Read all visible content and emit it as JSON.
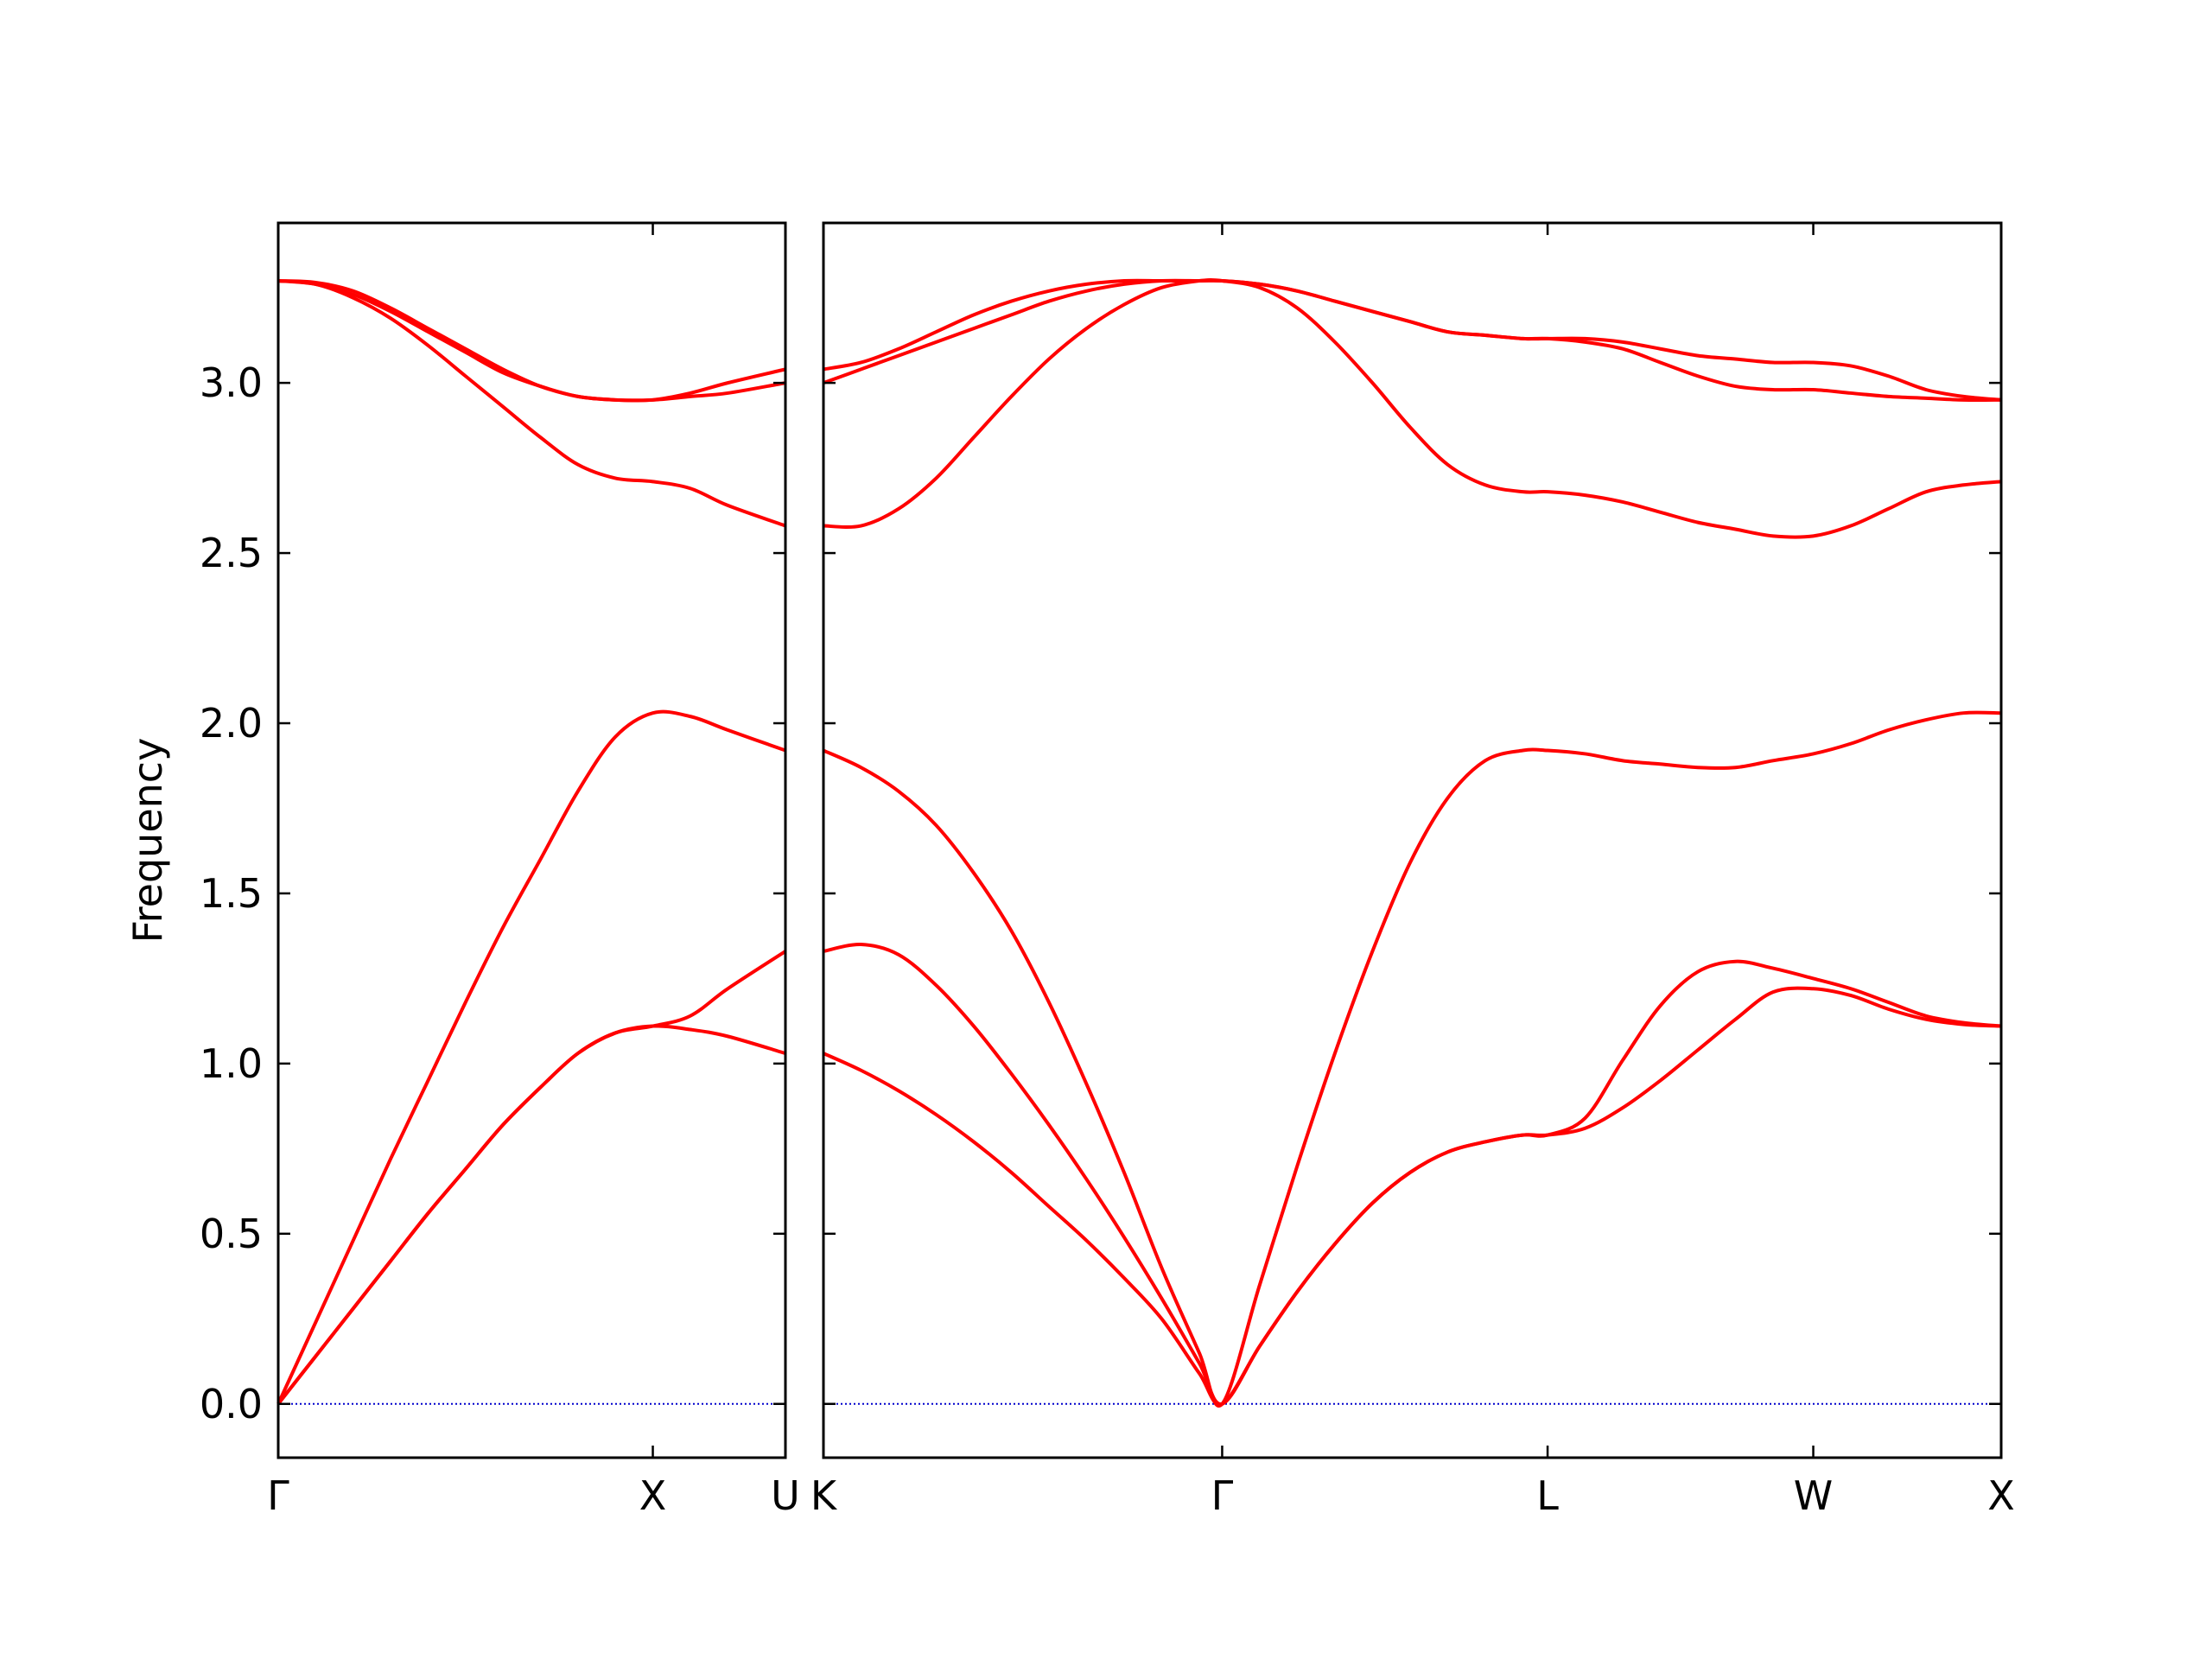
{
  "chart_data": [
    {
      "type": "line",
      "ylabel": "Frequency",
      "x": [
        0,
        0.1,
        0.2,
        0.3,
        0.4,
        0.5,
        0.6,
        0.7,
        0.8,
        0.9,
        1.0,
        1.1,
        1.2,
        1.354
      ],
      "xlim": [
        0,
        1.354
      ],
      "xticks": [
        {
          "value": 0,
          "label": "Γ"
        },
        {
          "value": 1.0,
          "label": "X"
        },
        {
          "value": 1.354,
          "label": "U"
        }
      ],
      "ylim": [
        -0.158,
        3.47
      ],
      "yticks": [
        {
          "value": 0,
          "label": "0.0"
        },
        {
          "value": 0.5,
          "label": "0.5"
        },
        {
          "value": 1,
          "label": "1.0"
        },
        {
          "value": 1.5,
          "label": "1.5"
        },
        {
          "value": 2,
          "label": "2.0"
        },
        {
          "value": 2.5,
          "label": "2.5"
        },
        {
          "value": 3,
          "label": "3.0"
        }
      ],
      "hline": {
        "value": 0,
        "color": "#0000cc",
        "style": "dotted"
      },
      "series": [
        {
          "color": "#ff0000",
          "values": [
            0,
            0.14,
            0.28,
            0.42,
            0.56,
            0.69,
            0.82,
            0.93,
            1.03,
            1.09,
            1.11,
            1.1,
            1.08,
            1.03
          ]
        },
        {
          "color": "#ff0000",
          "values": [
            0,
            0.14,
            0.28,
            0.42,
            0.56,
            0.69,
            0.82,
            0.93,
            1.03,
            1.09,
            1.11,
            1.14,
            1.22,
            1.33
          ]
        },
        {
          "color": "#ff0000",
          "values": [
            0,
            0.24,
            0.48,
            0.72,
            0.95,
            1.18,
            1.4,
            1.6,
            1.8,
            1.96,
            2.03,
            2.02,
            1.98,
            1.92
          ]
        },
        {
          "color": "#ff0000",
          "values": [
            3.3,
            3.29,
            3.25,
            3.19,
            3.11,
            3.02,
            2.93,
            2.84,
            2.76,
            2.72,
            2.71,
            2.69,
            2.64,
            2.58
          ]
        },
        {
          "color": "#ff0000",
          "values": [
            3.3,
            3.29,
            3.26,
            3.21,
            3.15,
            3.09,
            3.03,
            2.99,
            2.96,
            2.95,
            2.95,
            2.96,
            2.97,
            3.0
          ]
        },
        {
          "color": "#ff0000",
          "values": [
            3.3,
            3.295,
            3.27,
            3.22,
            3.16,
            3.1,
            3.04,
            2.99,
            2.96,
            2.95,
            2.95,
            2.97,
            3.0,
            3.04
          ]
        }
      ]
    },
    {
      "type": "line",
      "x": [
        0,
        0.1,
        0.2,
        0.3,
        0.4,
        0.5,
        0.6,
        0.7,
        0.8,
        0.9,
        1.0,
        1.061,
        1.161,
        1.261,
        1.361,
        1.461,
        1.561,
        1.661,
        1.761,
        1.861,
        1.927,
        2.027,
        2.127,
        2.227,
        2.327,
        2.427,
        2.527,
        2.634,
        2.734,
        2.834,
        2.934,
        3.034,
        3.134
      ],
      "xlim": [
        0,
        3.134
      ],
      "xticks": [
        {
          "value": 0,
          "label": "K"
        },
        {
          "value": 1.061,
          "label": "Γ"
        },
        {
          "value": 1.927,
          "label": "L"
        },
        {
          "value": 2.634,
          "label": "W"
        },
        {
          "value": 3.134,
          "label": "X"
        }
      ],
      "ylim": [
        -0.158,
        3.47
      ],
      "hline": {
        "value": 0,
        "color": "#0000cc",
        "style": "dotted"
      },
      "series": [
        {
          "color": "#ff0000",
          "values": [
            1.03,
            0.98,
            0.92,
            0.85,
            0.77,
            0.68,
            0.58,
            0.48,
            0.37,
            0.25,
            0.09,
            0,
            0.17,
            0.33,
            0.47,
            0.59,
            0.68,
            0.74,
            0.77,
            0.79,
            0.79,
            0.81,
            0.87,
            0.95,
            1.04,
            1.13,
            1.21,
            1.22,
            1.2,
            1.16,
            1.13,
            1.115,
            1.11
          ]
        },
        {
          "color": "#ff0000",
          "values": [
            1.33,
            1.35,
            1.32,
            1.23,
            1.11,
            0.97,
            0.82,
            0.66,
            0.49,
            0.31,
            0.12,
            0,
            0.17,
            0.33,
            0.47,
            0.59,
            0.68,
            0.74,
            0.77,
            0.79,
            0.79,
            0.84,
            1.01,
            1.17,
            1.27,
            1.3,
            1.28,
            1.25,
            1.22,
            1.18,
            1.14,
            1.12,
            1.11
          ]
        },
        {
          "color": "#ff0000",
          "values": [
            1.92,
            1.87,
            1.8,
            1.7,
            1.56,
            1.39,
            1.18,
            0.94,
            0.68,
            0.4,
            0.15,
            0,
            0.35,
            0.7,
            1.03,
            1.33,
            1.59,
            1.78,
            1.89,
            1.92,
            1.92,
            1.91,
            1.89,
            1.88,
            1.87,
            1.87,
            1.89,
            1.91,
            1.94,
            1.98,
            2.01,
            2.03,
            2.03
          ]
        },
        {
          "color": "#ff0000",
          "values": [
            2.58,
            2.58,
            2.63,
            2.72,
            2.84,
            2.96,
            3.07,
            3.16,
            3.23,
            3.28,
            3.3,
            3.3,
            3.28,
            3.22,
            3.12,
            3.0,
            2.87,
            2.76,
            2.7,
            2.68,
            2.68,
            2.67,
            2.65,
            2.62,
            2.59,
            2.57,
            2.55,
            2.55,
            2.58,
            2.63,
            2.68,
            2.7,
            2.71
          ]
        },
        {
          "color": "#ff0000",
          "values": [
            3.0,
            3.04,
            3.08,
            3.12,
            3.16,
            3.2,
            3.24,
            3.27,
            3.29,
            3.3,
            3.3,
            3.3,
            3.29,
            3.27,
            3.24,
            3.21,
            3.18,
            3.15,
            3.14,
            3.13,
            3.13,
            3.12,
            3.1,
            3.06,
            3.02,
            2.99,
            2.98,
            2.98,
            2.97,
            2.96,
            2.955,
            2.95,
            2.95
          ]
        },
        {
          "color": "#ff0000",
          "values": [
            3.04,
            3.06,
            3.1,
            3.15,
            3.2,
            3.24,
            3.27,
            3.29,
            3.3,
            3.3,
            3.3,
            3.3,
            3.29,
            3.27,
            3.24,
            3.21,
            3.18,
            3.15,
            3.14,
            3.13,
            3.13,
            3.13,
            3.12,
            3.1,
            3.08,
            3.07,
            3.06,
            3.06,
            3.05,
            3.02,
            2.98,
            2.96,
            2.95
          ]
        }
      ]
    }
  ]
}
